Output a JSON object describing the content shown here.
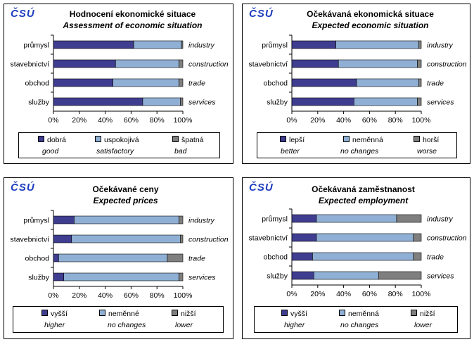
{
  "logo_text": "ČSÚ",
  "colors": {
    "dark": "#3f3d8f",
    "light": "#8fb0d4",
    "grey": "#7f7f7f"
  },
  "chart_data": [
    {
      "type": "bar",
      "stacked": true,
      "orientation": "horizontal",
      "title": "Hodnocení  ekonomické situace",
      "subtitle": "Assessment of economic situation",
      "categories": [
        "průmysl",
        "stavebnictví",
        "obchod",
        "služby"
      ],
      "categories_en": [
        "industry",
        "construction",
        "trade",
        "services"
      ],
      "xticks": [
        "0%",
        "20%",
        "40%",
        "60%",
        "80%",
        "100%"
      ],
      "xlim": [
        0,
        100
      ],
      "series": [
        {
          "name": "dobrá",
          "name_en": "good",
          "values": [
            62,
            48,
            46,
            69
          ]
        },
        {
          "name": "uspokojivá",
          "name_en": "satisfactory",
          "values": [
            37,
            49,
            51,
            29
          ]
        },
        {
          "name": "špatná",
          "name_en": "bad",
          "values": [
            1,
            3,
            3,
            2
          ]
        }
      ]
    },
    {
      "type": "bar",
      "stacked": true,
      "orientation": "horizontal",
      "title": "Očekávaná  ekonomická situace",
      "subtitle": "Expected economic situation",
      "categories": [
        "průmysl",
        "stavebnictví",
        "obchod",
        "služby"
      ],
      "categories_en": [
        "industry",
        "construction",
        "trade",
        "services"
      ],
      "xticks": [
        "0%",
        "20%",
        "40%",
        "60%",
        "80%",
        "100%"
      ],
      "xlim": [
        0,
        100
      ],
      "series": [
        {
          "name": "lepší",
          "name_en": "better",
          "values": [
            34,
            36,
            50,
            48
          ]
        },
        {
          "name": "neměnná",
          "name_en": "no changes",
          "values": [
            64,
            61,
            48,
            49
          ]
        },
        {
          "name": "horší",
          "name_en": "worse",
          "values": [
            2,
            3,
            2,
            3
          ]
        }
      ]
    },
    {
      "type": "bar",
      "stacked": true,
      "orientation": "horizontal",
      "title": "Očekávané ceny",
      "subtitle": "Expected prices",
      "categories": [
        "průmysl",
        "stavebnictví",
        "obchod",
        "služby"
      ],
      "categories_en": [
        "industry",
        "construction",
        "trade",
        "services"
      ],
      "xticks": [
        "0%",
        "20%",
        "40%",
        "60%",
        "80%",
        "100%"
      ],
      "xlim": [
        0,
        100
      ],
      "series": [
        {
          "name": "vyšší",
          "name_en": "higher",
          "values": [
            16,
            14,
            4,
            8
          ]
        },
        {
          "name": "neměnné",
          "name_en": "no changes",
          "values": [
            81,
            84,
            84,
            89
          ]
        },
        {
          "name": "nižší",
          "name_en": "lower",
          "values": [
            3,
            2,
            12,
            3
          ]
        }
      ]
    },
    {
      "type": "bar",
      "stacked": true,
      "orientation": "horizontal",
      "title": "Očekávaná zaměstnanost",
      "subtitle": "Expected employment",
      "categories": [
        "průmysl",
        "stavebnictví",
        "obchod",
        "služby"
      ],
      "categories_en": [
        "industry",
        "construction",
        "trade",
        "services"
      ],
      "xticks": [
        "0%",
        "20%",
        "40%",
        "60%",
        "80%",
        "100%"
      ],
      "xlim": [
        0,
        100
      ],
      "series": [
        {
          "name": "vyšší",
          "name_en": "higher",
          "values": [
            19,
            19,
            16,
            17
          ]
        },
        {
          "name": "neměnná",
          "name_en": "no changes",
          "values": [
            62,
            75,
            78,
            50
          ]
        },
        {
          "name": "nižší",
          "name_en": "lower",
          "values": [
            19,
            6,
            6,
            33
          ]
        }
      ]
    }
  ]
}
